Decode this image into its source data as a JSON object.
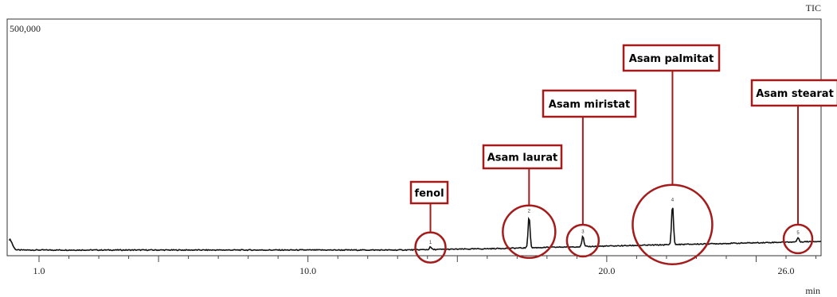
{
  "chart_data": {
    "type": "line",
    "corner_label": "TIC",
    "y_max_label": "500,000",
    "x_unit_label": "min",
    "x_ticks": [
      "1.0",
      "10.0",
      "20.0",
      "26.0"
    ],
    "xlim": [
      0.0,
      27.5
    ],
    "ylim": [
      0,
      500000
    ],
    "baseline": 12000,
    "grid": false,
    "peaks": [
      {
        "label": "fenol",
        "rt": 14.1,
        "height": 5500,
        "peak_no": "1"
      },
      {
        "label": "Asam laurat",
        "rt": 17.4,
        "height": 68000,
        "peak_no": "2"
      },
      {
        "label": "Asam miristat",
        "rt": 19.2,
        "height": 22000,
        "peak_no": "3"
      },
      {
        "label": "Asam palmitat",
        "rt": 22.2,
        "height": 85000,
        "peak_no": "4"
      },
      {
        "label": "Asam stearat",
        "rt": 26.4,
        "height": 9000,
        "peak_no": "5"
      }
    ],
    "annotation_color": "#a51b1b",
    "trace_color": "#111111"
  }
}
